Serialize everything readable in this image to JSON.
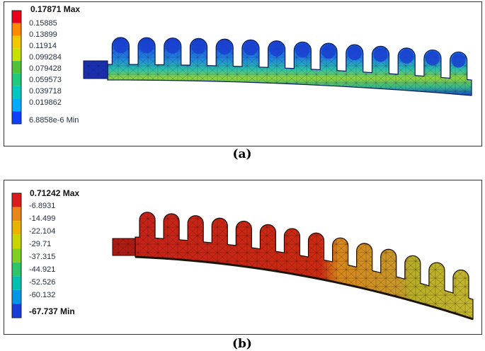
{
  "panel_a": {
    "caption": "(a)",
    "legend": {
      "max_label": "0.17871 Max",
      "min_label": "6.8858e-6 Min",
      "labels": [
        "0.15885",
        "0.13899",
        "0.11914",
        "0.099284",
        "0.079428",
        "0.059573",
        "0.039718",
        "0.019862"
      ],
      "colors": [
        "#e8001c",
        "#ff8a00",
        "#f2c800",
        "#c8e000",
        "#4fc43a",
        "#1fc87a",
        "#00c8c0",
        "#00aaff",
        "#1040ff"
      ]
    }
  },
  "panel_b": {
    "caption": "(b)",
    "legend": {
      "max_label": "0.71242 Max",
      "min_label": "-67.737 Min",
      "labels": [
        "-6.8931",
        "-14.499",
        "-22.104",
        "-29.71",
        "-37.315",
        "-44.921",
        "-52.526",
        "-60.132"
      ],
      "colors": [
        "#d91c1c",
        "#e8861a",
        "#e8b400",
        "#c8d400",
        "#7fce22",
        "#2ec46a",
        "#00c0b0",
        "#0096e6",
        "#1a3cd8"
      ]
    }
  }
}
